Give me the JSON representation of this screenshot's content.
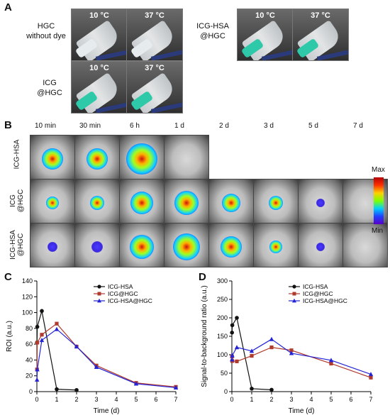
{
  "panels": {
    "A": "A",
    "B": "B",
    "C": "C",
    "D": "D"
  },
  "panel_a": {
    "hgc_label": "HGC\nwithout dye",
    "icg_hsa_label": "ICG-HSA\n@HGC",
    "icg_label": "ICG\n@HGC",
    "temp_low": "10 °C",
    "temp_high": "37 °C",
    "liquid_colors": {
      "clear": "#e8ecef",
      "green": "#2ec9a8"
    }
  },
  "panel_b": {
    "timepoints": [
      "10 min",
      "30 min",
      "6 h",
      "1 d",
      "2 d",
      "3 d",
      "5 d",
      "7 d"
    ],
    "rows": [
      "ICG-HSA",
      "ICG\n@HGC",
      "ICG-HSA\n@HGC"
    ],
    "scale_max": "Max",
    "scale_min": "Min"
  },
  "chart_data": [
    {
      "type": "line",
      "xlabel": "Time (d)",
      "ylabel": "ROI (a.u.)",
      "xlim": [
        0,
        7
      ],
      "ylim": [
        0,
        140
      ],
      "xticks": [
        0,
        1,
        2,
        3,
        4,
        5,
        6,
        7
      ],
      "yticks": [
        0,
        20,
        40,
        60,
        80,
        100,
        120,
        140
      ],
      "legend_position": "top-center",
      "series": [
        {
          "name": "ICG-HSA",
          "color": "#111111",
          "marker": "circle",
          "x": [
            0.007,
            0.021,
            0.25,
            1,
            2
          ],
          "y": [
            62,
            82,
            102,
            3,
            2
          ]
        },
        {
          "name": "ICG@HGC",
          "color": "#b03a2e",
          "marker": "square",
          "x": [
            0.007,
            0.021,
            0.25,
            1,
            2,
            3,
            5,
            7
          ],
          "y": [
            28,
            62,
            72,
            86,
            57,
            33,
            11,
            6
          ]
        },
        {
          "name": "ICG-HSA@HGC",
          "color": "#2424d6",
          "marker": "triangle",
          "x": [
            0.007,
            0.021,
            0.25,
            1,
            2,
            3,
            5,
            7
          ],
          "y": [
            15,
            28,
            65,
            79,
            57,
            31,
            10,
            5
          ]
        }
      ]
    },
    {
      "type": "line",
      "xlabel": "Time (d)",
      "ylabel": "Signal-to-background ratio (a.u.)",
      "xlim": [
        0,
        7
      ],
      "ylim": [
        0,
        300
      ],
      "xticks": [
        0,
        1,
        2,
        3,
        4,
        5,
        6,
        7
      ],
      "yticks": [
        0,
        50,
        100,
        150,
        200,
        250,
        300
      ],
      "legend_position": "top-center",
      "series": [
        {
          "name": "ICG-HSA",
          "color": "#111111",
          "marker": "circle",
          "x": [
            0.007,
            0.021,
            0.25,
            1,
            2
          ],
          "y": [
            160,
            180,
            200,
            8,
            5
          ]
        },
        {
          "name": "ICG@HGC",
          "color": "#b03a2e",
          "marker": "square",
          "x": [
            0.007,
            0.021,
            0.25,
            1,
            2,
            3,
            5,
            7
          ],
          "y": [
            95,
            83,
            82,
            97,
            120,
            112,
            76,
            38
          ]
        },
        {
          "name": "ICG-HSA@HGC",
          "color": "#2424d6",
          "marker": "triangle",
          "x": [
            0.007,
            0.021,
            0.25,
            1,
            2,
            3,
            5,
            7
          ],
          "y": [
            87,
            98,
            120,
            110,
            142,
            104,
            85,
            47
          ]
        }
      ]
    }
  ]
}
